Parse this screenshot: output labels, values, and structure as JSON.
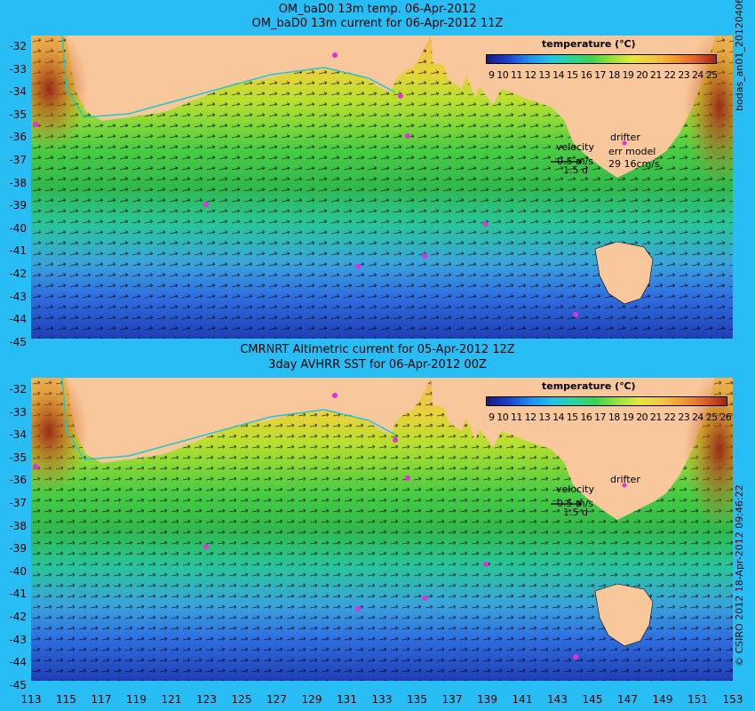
{
  "top_panel": {
    "title_line1": "OM_baD0 13m temp. 06-Apr-2012",
    "title_line2": "OM_baD0 13m current for 06-Apr-2012 11Z",
    "colorbar_title": "temperature (℃)",
    "colorbar_ticks": "9 10 11 12 13 14 15 16 17 18 19 20 21 22 23 24 25",
    "velocity_label": "velocity",
    "velocity_scale": "0.5 m/s",
    "velocity_scale2": "1.5 d",
    "drifter_label": "drifter",
    "err_model_label": "err model",
    "err_model_value": "29 16cm/s",
    "side_text": "bodas_an01_20120406"
  },
  "bottom_panel": {
    "title_line1": "CMRNRT Altimetric current for 05-Apr-2012 12Z",
    "title_line2": "3day AVHRR SST for 06-Apr-2012 00Z",
    "colorbar_title": "temperature (℃)",
    "colorbar_ticks": "9 10 11 12 13 14 15 16 17 18 19 20 21 22 23 24 25 26",
    "velocity_label": "velocity",
    "velocity_scale": "0.5 m/s",
    "velocity_scale2": "1.5 d",
    "drifter_label": "drifter",
    "side_text": "© CSIRO 2012   18-Apr-2012 09:46:22"
  },
  "latitude_ticks": [
    "-32",
    "-33",
    "-34",
    "-35",
    "-36",
    "-37",
    "-38",
    "-39",
    "-40",
    "-41",
    "-42",
    "-43",
    "-44",
    "-45"
  ],
  "longitude_ticks": [
    "113",
    "115",
    "117",
    "119",
    "121",
    "123",
    "125",
    "127",
    "129",
    "131",
    "133",
    "135",
    "137",
    "139",
    "141",
    "143",
    "145",
    "147",
    "149",
    "151",
    "153"
  ],
  "colors": {
    "background": "#29bdf5",
    "land": "#f8c79c",
    "drifter": "#e030e0",
    "arrow": "#000000"
  }
}
